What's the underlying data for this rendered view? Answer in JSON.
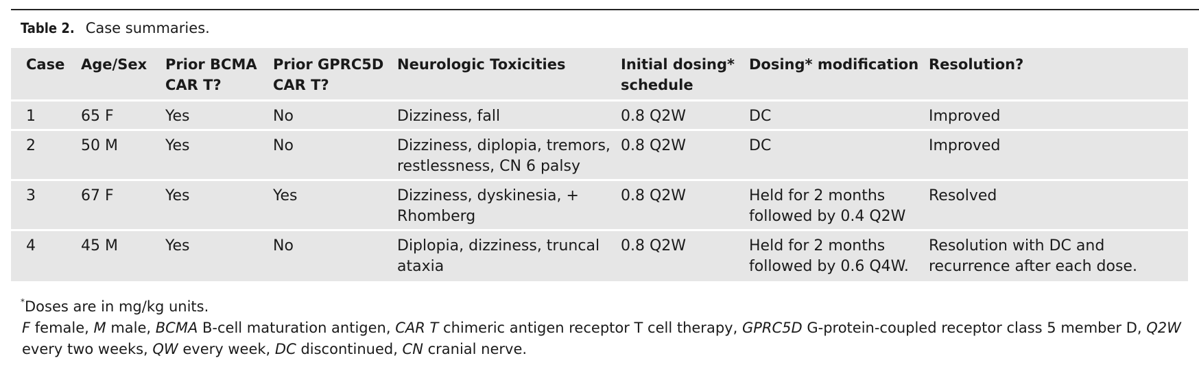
{
  "caption": {
    "label": "Table 2.",
    "title": "Case summaries."
  },
  "table": {
    "headers": [
      "Case",
      "Age/Sex",
      "Prior BCMA CAR T?",
      "Prior GPRC5D CAR T?",
      "Neurologic Toxicities",
      "Initial dosing* schedule",
      "Dosing* modification",
      "Resolution?"
    ],
    "rows": [
      [
        "1",
        "65 F",
        "Yes",
        "No",
        "Dizziness, fall",
        "0.8 Q2W",
        "DC",
        "Improved"
      ],
      [
        "2",
        "50 M",
        "Yes",
        "No",
        "Dizziness, diplopia, tremors, restlessness, CN 6 palsy",
        "0.8 Q2W",
        "DC",
        "Improved"
      ],
      [
        "3",
        "67 F",
        "Yes",
        "Yes",
        "Dizziness, dyskinesia, + Rhomberg",
        "0.8 Q2W",
        "Held for 2 months followed by 0.4 Q2W",
        "Resolved"
      ],
      [
        "4",
        "45 M",
        "Yes",
        "No",
        "Diplopia, dizziness, truncal ataxia",
        "0.8 Q2W",
        "Held for 2 months followed by 0.6 Q4W.",
        "Resolution with DC and recurrence after each dose."
      ]
    ]
  },
  "footnotes": {
    "doses_mark": "*",
    "doses_text": "Doses are in mg/kg units.",
    "abbreviations": [
      {
        "term": "F",
        "def": " female, "
      },
      {
        "term": "M",
        "def": " male, "
      },
      {
        "term": "BCMA",
        "def": " B-cell maturation antigen, "
      },
      {
        "term": "CAR T",
        "def": " chimeric antigen receptor T cell therapy, "
      },
      {
        "term": "GPRC5D",
        "def": " G-protein-coupled receptor class 5 member D, "
      },
      {
        "term": "Q2W",
        "def": " every two weeks, "
      },
      {
        "term": "QW",
        "def": " every week, "
      },
      {
        "term": "DC",
        "def": " discontinued, "
      },
      {
        "term": "CN",
        "def": " cranial nerve."
      }
    ]
  }
}
